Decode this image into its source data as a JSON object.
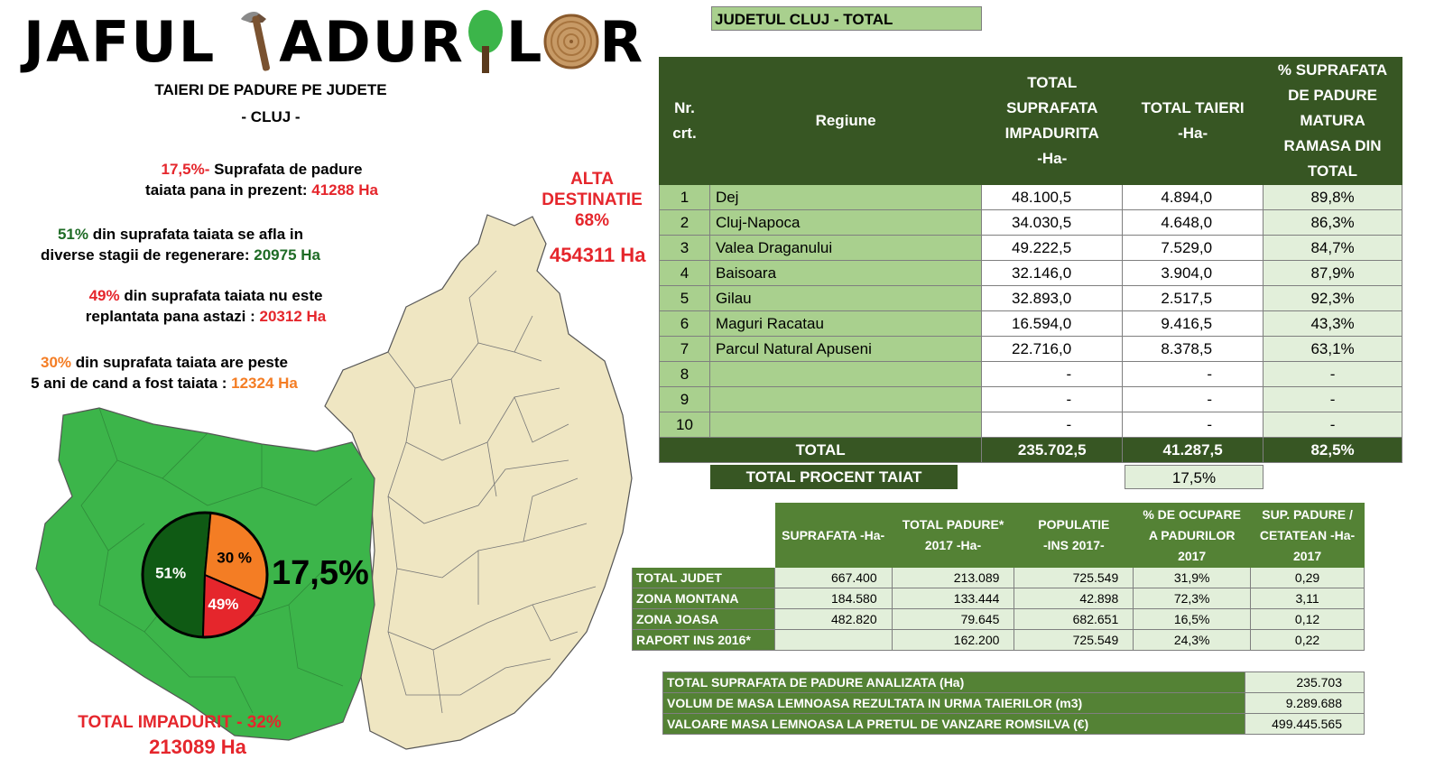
{
  "title": {
    "prefix": "JAFUL",
    "part_a": "ADU",
    "part_b": "R",
    "part_c": "L",
    "part_d": "R"
  },
  "subtitle": "TAIERI DE PADURE PE JUDETE",
  "county": "- CLUJ -",
  "stats": {
    "s1_pct": "17,5%-",
    "s1_text": " Suprafata de padure",
    "s1_line2": "taiata pana in prezent: ",
    "s1_value": "41288 Ha",
    "s2_pct": "51%",
    "s2_text": " din suprafata taiata se afla in",
    "s2_line2": "diverse stagii de regenerare:  ",
    "s2_value": "20975 Ha",
    "s3_pct": "49%",
    "s3_text": " din suprafata taiata nu este",
    "s3_line2": "replantata pana astazi : ",
    "s3_value": "20312 Ha",
    "s4_pct": "30%",
    "s4_text": " din suprafata taiata are peste",
    "s4_line2": "5 ani de cand a fost taiata : ",
    "s4_value": "12324 Ha"
  },
  "map": {
    "alta_1": "ALTA",
    "alta_2": "DESTINATIE",
    "alta_pct": "68%",
    "alta_value": "454311 Ha",
    "impadurit_label": "TOTAL IMPADURIT - 32%",
    "impadurit_value": "213089 Ha",
    "cut_pct_big": "17,5%",
    "colors": {
      "forest": "#3cb54a",
      "other": "#efe6c2",
      "border": "#555555"
    }
  },
  "pie": {
    "slices": [
      {
        "label": "51%",
        "value": 51,
        "color": "#0f5a14"
      },
      {
        "label": "30 %",
        "value": 30,
        "color": "#f47d24"
      },
      {
        "label": "49%",
        "value": 19,
        "color": "#e5262c"
      }
    ]
  },
  "main_table": {
    "caption": "JUDETUL CLUJ - TOTAL",
    "headers": {
      "nr": [
        "Nr.",
        "crt."
      ],
      "regiune": "Regiune",
      "suprafata": [
        "TOTAL",
        "SUPRAFATA",
        "IMPADURITA",
        "-Ha-"
      ],
      "taieri": [
        "TOTAL TAIERI",
        "-Ha-"
      ],
      "procent": [
        "% SUPRAFATA",
        "DE PADURE",
        "MATURA",
        "RAMASA DIN",
        "TOTAL"
      ]
    },
    "rows": [
      {
        "nr": "1",
        "regiune": "Dej",
        "suprafata": "48.100,5",
        "taieri": "4.894,0",
        "procent": "89,8%"
      },
      {
        "nr": "2",
        "regiune": "Cluj-Napoca",
        "suprafata": "34.030,5",
        "taieri": "4.648,0",
        "procent": "86,3%"
      },
      {
        "nr": "3",
        "regiune": "Valea Draganului",
        "suprafata": "49.222,5",
        "taieri": "7.529,0",
        "procent": "84,7%"
      },
      {
        "nr": "4",
        "regiune": "Baisoara",
        "suprafata": "32.146,0",
        "taieri": "3.904,0",
        "procent": "87,9%"
      },
      {
        "nr": "5",
        "regiune": "Gilau",
        "suprafata": "32.893,0",
        "taieri": "2.517,5",
        "procent": "92,3%"
      },
      {
        "nr": "6",
        "regiune": "Maguri Racatau",
        "suprafata": "16.594,0",
        "taieri": "9.416,5",
        "procent": "43,3%"
      },
      {
        "nr": "7",
        "regiune": "Parcul Natural Apuseni",
        "suprafata": "22.716,0",
        "taieri": "8.378,5",
        "procent": "63,1%"
      },
      {
        "nr": "8",
        "regiune": "",
        "suprafata": "-",
        "taieri": "-",
        "procent": "-"
      },
      {
        "nr": "9",
        "regiune": "",
        "suprafata": "-",
        "taieri": "-",
        "procent": "-"
      },
      {
        "nr": "10",
        "regiune": "",
        "suprafata": "-",
        "taieri": "-",
        "procent": "-"
      }
    ],
    "total": {
      "label": "TOTAL",
      "suprafata": "235.702,5",
      "taieri": "41.287,5",
      "procent": "82,5%"
    },
    "procent_taiat": {
      "label": "TOTAL PROCENT TAIAT",
      "value": "17,5%"
    }
  },
  "stats_table": {
    "headers": {
      "suprafata": "SUPRAFATA  -Ha-",
      "padure": [
        "TOTAL PADURE*",
        "2017          -Ha-"
      ],
      "populatie": [
        "POPULATIE",
        "-INS 2017-"
      ],
      "ocupare": [
        "%  DE OCUPARE",
        "A PADURILOR",
        "2017"
      ],
      "sup_cetatean": [
        "SUP. PADURE /",
        "CETATEAN -Ha-",
        "2017"
      ]
    },
    "rows": [
      {
        "label": "TOTAL JUDET",
        "suprafata": "667.400",
        "padure": "213.089",
        "populatie": "725.549",
        "ocupare": "31,9%",
        "sup_cetatean": "0,29"
      },
      {
        "label": "ZONA MONTANA",
        "suprafata": "184.580",
        "padure": "133.444",
        "populatie": "42.898",
        "ocupare": "72,3%",
        "sup_cetatean": "3,11"
      },
      {
        "label": "ZONA JOASA",
        "suprafata": "482.820",
        "padure": "79.645",
        "populatie": "682.651",
        "ocupare": "16,5%",
        "sup_cetatean": "0,12"
      },
      {
        "label": "RAPORT INS 2016*",
        "suprafata": "",
        "padure": "162.200",
        "populatie": "725.549",
        "ocupare": "24,3%",
        "sup_cetatean": "0,22"
      }
    ]
  },
  "summary_table": {
    "rows": [
      {
        "label": "TOTAL SUPRAFATA DE PADURE ANALIZATA                          (Ha)",
        "value": "235.703"
      },
      {
        "label": "VOLUM DE MASA LEMNOASA REZULTATA IN URMA TAIERILOR    (m3)",
        "value": "9.289.688"
      },
      {
        "label": "VALOARE MASA LEMNOASA LA PRETUL DE VANZARE ROMSILVA   (€)",
        "value": "499.445.565"
      }
    ]
  }
}
